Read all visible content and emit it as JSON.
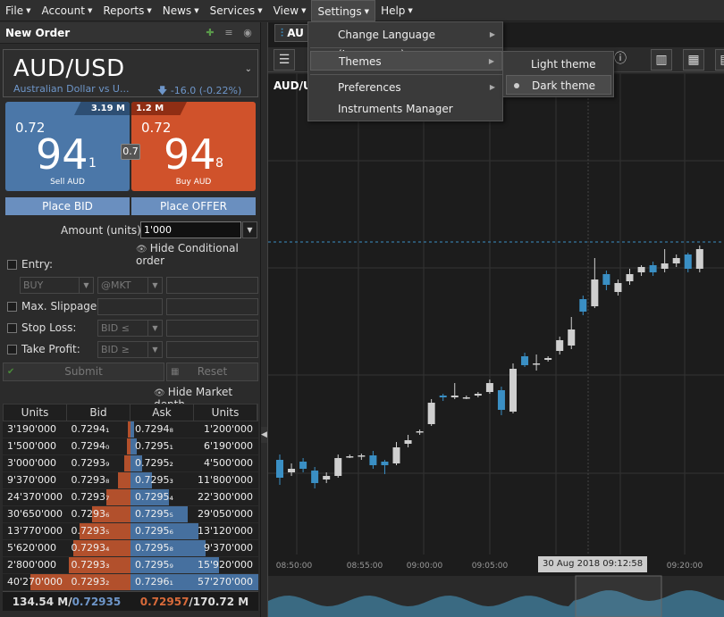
{
  "menubar": [
    {
      "label": "File"
    },
    {
      "label": "Account"
    },
    {
      "label": "Reports"
    },
    {
      "label": "News"
    },
    {
      "label": "Services"
    },
    {
      "label": "View"
    },
    {
      "label": "Settings"
    },
    {
      "label": "Help"
    }
  ],
  "settings_menu": {
    "items": [
      "Change Language (Languages)",
      "Themes",
      "Preferences",
      "Instruments Manager"
    ]
  },
  "themes_menu": {
    "items": [
      "Light theme",
      "Dark theme"
    ],
    "selected": "Dark theme"
  },
  "order_panel": {
    "title": "New Order",
    "symbol": "AUD/USD",
    "description": "Australian Dollar vs U...",
    "change": "-16.0 (-0.22%)",
    "sell": {
      "big_figure": "0.72",
      "pips": "94",
      "pipette": "1",
      "label": "Sell AUD",
      "volume": "3.19 M"
    },
    "buy": {
      "big_figure": "0.72",
      "pips": "94",
      "pipette": "8",
      "label": "Buy AUD",
      "volume": "1.2 M"
    },
    "spread": "0.7",
    "place_bid": "Place BID",
    "place_offer": "Place OFFER",
    "amount_label": "Amount (units):",
    "amount_value": "1'000",
    "hide_conditional": "Hide Conditional order",
    "entry_label": "Entry:",
    "entry_side": "BUY",
    "entry_type": "@MKT",
    "max_slippage_label": "Max. Slippage:",
    "stop_loss_label": "Stop Loss:",
    "stop_loss_type": "BID ≤",
    "take_profit_label": "Take Profit:",
    "take_profit_type": "BID ≥",
    "submit": "Submit",
    "reset": "Reset",
    "hide_depth": "Hide Market depth"
  },
  "depth": {
    "headers": [
      "Units",
      "Bid",
      "Ask",
      "Units"
    ],
    "rows": [
      {
        "bid_units": "3'190'000",
        "bid": "0.7294₁",
        "ask": "0.7294₈",
        "ask_units": "1'200'000",
        "bid_frac": 0.02,
        "ask_frac": 0.03
      },
      {
        "bid_units": "1'500'000",
        "bid": "0.7294₀",
        "ask": "0.7295₁",
        "ask_units": "6'190'000",
        "bid_frac": 0.03,
        "ask_frac": 0.05
      },
      {
        "bid_units": "3'000'000",
        "bid": "0.7293₉",
        "ask": "0.7295₂",
        "ask_units": "4'500'000",
        "bid_frac": 0.05,
        "ask_frac": 0.09
      },
      {
        "bid_units": "9'370'000",
        "bid": "0.7293₈",
        "ask": "0.7295₃",
        "ask_units": "11'800'000",
        "bid_frac": 0.1,
        "ask_frac": 0.17
      },
      {
        "bid_units": "24'370'000",
        "bid": "0.7293₇",
        "ask": "0.7295₄",
        "ask_units": "22'300'000",
        "bid_frac": 0.19,
        "ask_frac": 0.3
      },
      {
        "bid_units": "30'650'000",
        "bid": "0.7293₆",
        "ask": "0.7295₅",
        "ask_units": "29'050'000",
        "bid_frac": 0.3,
        "ask_frac": 0.45
      },
      {
        "bid_units": "13'770'000",
        "bid": "0.7293₅",
        "ask": "0.7295₆",
        "ask_units": "13'120'000",
        "bid_frac": 0.4,
        "ask_frac": 0.53
      },
      {
        "bid_units": "5'620'000",
        "bid": "0.7293₄",
        "ask": "0.7295₈",
        "ask_units": "9'370'000",
        "bid_frac": 0.45,
        "ask_frac": 0.59
      },
      {
        "bid_units": "2'800'000",
        "bid": "0.7293₃",
        "ask": "0.7295₉",
        "ask_units": "15'920'000",
        "bid_frac": 0.48,
        "ask_frac": 0.69
      },
      {
        "bid_units": "40'270'000",
        "bid": "0.7293₂",
        "ask": "0.7296₁",
        "ask_units": "57'270'000",
        "bid_frac": 0.78,
        "ask_frac": 1.0
      }
    ],
    "footer_left_amount": "134.54 M/",
    "footer_left_price": "0.72935",
    "footer_right_price": "0.72957",
    "footer_right_amount": "/170.72 M"
  },
  "chart": {
    "tab_label": "AU",
    "symbol_label": "AUD/U",
    "time_labels": [
      "08:50:00",
      "08:55:00",
      "09:00:00",
      "09:05:00",
      "09:20:00"
    ],
    "cursor_time": "30 Aug 2018 09:12:58",
    "colors": {
      "bull": "#cfcfcf",
      "bear": "#3a8fc4",
      "grid": "#333",
      "dash": "#3a8fc4",
      "volume": "#3a6a82"
    }
  },
  "chart_data": {
    "type": "candlestick",
    "series": [
      {
        "o": 60,
        "c": 40,
        "h": 66,
        "l": 32
      },
      {
        "o": 46,
        "c": 50,
        "h": 56,
        "l": 42
      },
      {
        "o": 58,
        "c": 50,
        "h": 62,
        "l": 46
      },
      {
        "o": 48,
        "c": 34,
        "h": 52,
        "l": 28
      },
      {
        "o": 38,
        "c": 42,
        "h": 46,
        "l": 34
      },
      {
        "o": 42,
        "c": 62,
        "h": 66,
        "l": 40
      },
      {
        "o": 64,
        "c": 64,
        "h": 66,
        "l": 62
      },
      {
        "o": 64,
        "c": 65,
        "h": 67,
        "l": 60
      },
      {
        "o": 65,
        "c": 54,
        "h": 70,
        "l": 50
      },
      {
        "o": 58,
        "c": 54,
        "h": 60,
        "l": 44
      },
      {
        "o": 56,
        "c": 74,
        "h": 80,
        "l": 54
      },
      {
        "o": 78,
        "c": 82,
        "h": 88,
        "l": 74
      },
      {
        "o": 92,
        "c": 92,
        "h": 94,
        "l": 88
      },
      {
        "o": 100,
        "c": 124,
        "h": 128,
        "l": 98
      },
      {
        "o": 132,
        "c": 130,
        "h": 134,
        "l": 126
      },
      {
        "o": 130,
        "c": 132,
        "h": 146,
        "l": 128
      },
      {
        "o": 130,
        "c": 130,
        "h": 132,
        "l": 128
      },
      {
        "o": 132,
        "c": 134,
        "h": 136,
        "l": 130
      },
      {
        "o": 136,
        "c": 146,
        "h": 150,
        "l": 134
      },
      {
        "o": 138,
        "c": 116,
        "h": 142,
        "l": 110
      },
      {
        "o": 114,
        "c": 162,
        "h": 168,
        "l": 112
      },
      {
        "o": 176,
        "c": 166,
        "h": 180,
        "l": 164
      },
      {
        "o": 168,
        "c": 168,
        "h": 178,
        "l": 160
      },
      {
        "o": 172,
        "c": 174,
        "h": 176,
        "l": 170
      },
      {
        "o": 182,
        "c": 194,
        "h": 198,
        "l": 178
      },
      {
        "o": 188,
        "c": 206,
        "h": 220,
        "l": 184
      },
      {
        "o": 240,
        "c": 226,
        "h": 244,
        "l": 222
      },
      {
        "o": 232,
        "c": 262,
        "h": 286,
        "l": 230
      },
      {
        "o": 268,
        "c": 256,
        "h": 272,
        "l": 250
      },
      {
        "o": 248,
        "c": 258,
        "h": 262,
        "l": 244
      },
      {
        "o": 260,
        "c": 268,
        "h": 274,
        "l": 256
      },
      {
        "o": 270,
        "c": 276,
        "h": 278,
        "l": 266
      },
      {
        "o": 278,
        "c": 270,
        "h": 282,
        "l": 266
      },
      {
        "o": 274,
        "c": 280,
        "h": 296,
        "l": 270
      },
      {
        "o": 280,
        "c": 286,
        "h": 290,
        "l": 276
      },
      {
        "o": 290,
        "c": 274,
        "h": 292,
        "l": 270
      },
      {
        "o": 274,
        "c": 296,
        "h": 300,
        "l": 270
      }
    ]
  }
}
